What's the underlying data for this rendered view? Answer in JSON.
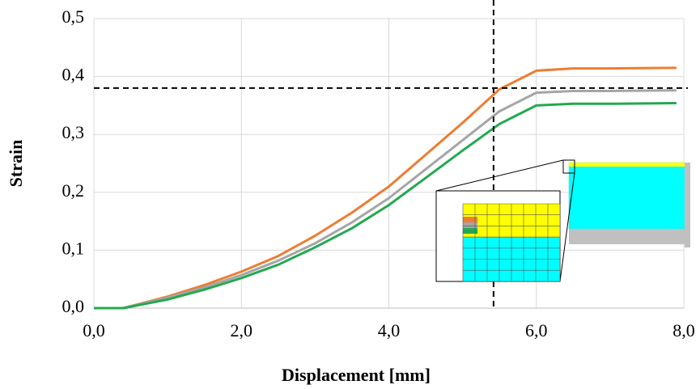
{
  "chart_data": {
    "type": "line",
    "x_label": "Displacement [mm]",
    "y_label": "Strain",
    "x": [
      0,
      0.4,
      1,
      1.5,
      2,
      2.5,
      3,
      3.5,
      4,
      4.5,
      5,
      5.5,
      6,
      6.5,
      7,
      7.9
    ],
    "series": [
      {
        "color": "#ed7d31",
        "values": [
          0,
          0,
          0.02,
          0.04,
          0.063,
          0.09,
          0.125,
          0.165,
          0.21,
          0.265,
          0.32,
          0.378,
          0.41,
          0.414,
          0.414,
          0.415
        ]
      },
      {
        "color": "#a5a5a5",
        "values": [
          0,
          0,
          0.018,
          0.036,
          0.057,
          0.082,
          0.112,
          0.148,
          0.19,
          0.24,
          0.29,
          0.34,
          0.372,
          0.375,
          0.375,
          0.376
        ]
      },
      {
        "color": "#22a94f",
        "values": [
          0,
          0,
          0.015,
          0.032,
          0.052,
          0.075,
          0.105,
          0.138,
          0.178,
          0.225,
          0.272,
          0.318,
          0.35,
          0.353,
          0.353,
          0.354
        ]
      }
    ],
    "xlim": [
      0,
      8
    ],
    "ylim": [
      0,
      0.5
    ],
    "xticks": [
      {
        "value": 0,
        "label": "0,0"
      },
      {
        "value": 2,
        "label": "2,0"
      },
      {
        "value": 4,
        "label": "4,0"
      },
      {
        "value": 6,
        "label": "6,0"
      },
      {
        "value": 8,
        "label": "8,0"
      }
    ],
    "yticks": [
      {
        "value": 0,
        "label": "0,0"
      },
      {
        "value": 0.1,
        "label": "0,1"
      },
      {
        "value": 0.2,
        "label": "0,2"
      },
      {
        "value": 0.3,
        "label": "0,3"
      },
      {
        "value": 0.4,
        "label": "0,4"
      },
      {
        "value": 0.5,
        "label": "0,5"
      }
    ],
    "grid": true,
    "reference_lines": {
      "x": 5.42,
      "y": 0.38
    }
  }
}
